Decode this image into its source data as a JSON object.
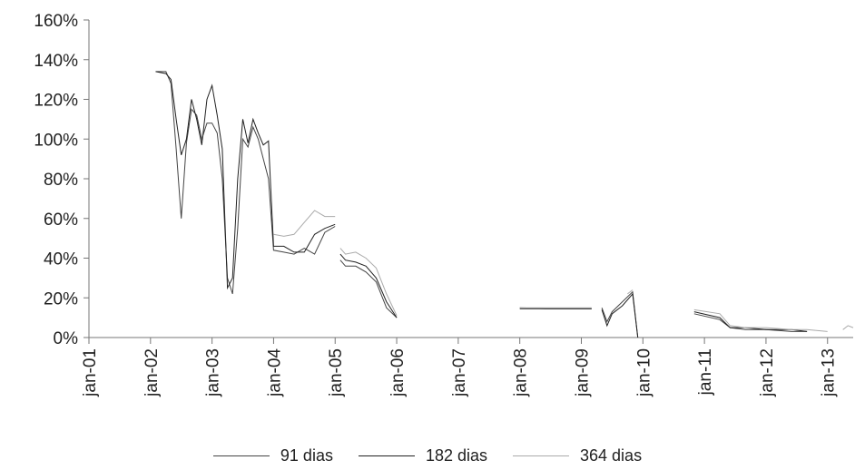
{
  "chart_data": {
    "type": "line",
    "y_ticks": [
      "0%",
      "20%",
      "40%",
      "60%",
      "80%",
      "100%",
      "120%",
      "140%",
      "160%"
    ],
    "ylim": [
      0,
      160
    ],
    "x_ticks": [
      "jan-01",
      "jan-02",
      "jan-03",
      "jan-04",
      "jan-05",
      "jan-06",
      "jan-07",
      "jan-08",
      "jan-09",
      "jan-10",
      "jan-11",
      "jan-12",
      "jan-13"
    ],
    "xlim": [
      "2001-01",
      "2013-06"
    ],
    "grid": false,
    "legend_position": "bottom",
    "series": [
      {
        "name": "91 dias",
        "color": "#444444",
        "segments": [
          [
            [
              "2002-02",
              134
            ],
            [
              "2002-04",
              134
            ],
            [
              "2002-05",
              128
            ],
            [
              "2002-06",
              95
            ],
            [
              "2002-07",
              60
            ],
            [
              "2002-08",
              98
            ],
            [
              "2002-09",
              115
            ],
            [
              "2002-10",
              112
            ],
            [
              "2002-11",
              100
            ],
            [
              "2002-12",
              108
            ],
            [
              "2003-01",
              108
            ],
            [
              "2003-02",
              103
            ],
            [
              "2003-03",
              80
            ],
            [
              "2003-04",
              30
            ],
            [
              "2003-05",
              22
            ],
            [
              "2003-06",
              55
            ],
            [
              "2003-07",
              100
            ],
            [
              "2003-08",
              96
            ],
            [
              "2003-09",
              106
            ],
            [
              "2003-10",
              100
            ],
            [
              "2003-11",
              90
            ],
            [
              "2003-12",
              80
            ],
            [
              "2004-01",
              44
            ],
            [
              "2004-03",
              43
            ],
            [
              "2004-05",
              42
            ],
            [
              "2004-07",
              45
            ],
            [
              "2004-09",
              42
            ],
            [
              "2004-11",
              53
            ],
            [
              "2005-01",
              56
            ]
          ],
          [
            [
              "2005-02",
              39
            ],
            [
              "2005-03",
              36
            ],
            [
              "2005-05",
              36
            ],
            [
              "2005-07",
              33
            ],
            [
              "2005-09",
              28
            ],
            [
              "2005-11",
              15
            ],
            [
              "2006-01",
              10
            ]
          ],
          [
            [
              "2008-01",
              15
            ],
            [
              "2008-06",
              14.5
            ],
            [
              "2009-03",
              14.5
            ]
          ],
          [
            [
              "2009-05",
              15
            ],
            [
              "2009-06",
              8
            ],
            [
              "2009-07",
              13
            ],
            [
              "2009-09",
              18
            ],
            [
              "2009-11",
              23
            ],
            [
              "2009-12",
              0
            ]
          ],
          [
            [
              "2010-11",
              12
            ],
            [
              "2011-04",
              9
            ],
            [
              "2011-06",
              5
            ],
            [
              "2011-09",
              4
            ],
            [
              "2012-01",
              4
            ],
            [
              "2012-06",
              3
            ],
            [
              "2012-09",
              3
            ]
          ]
        ]
      },
      {
        "name": "182 dias",
        "color": "#222222",
        "segments": [
          [
            [
              "2002-02",
              134
            ],
            [
              "2002-04",
              133
            ],
            [
              "2002-05",
              130
            ],
            [
              "2002-06",
              110
            ],
            [
              "2002-07",
              92
            ],
            [
              "2002-08",
              100
            ],
            [
              "2002-09",
              120
            ],
            [
              "2002-10",
              110
            ],
            [
              "2002-11",
              97
            ],
            [
              "2002-12",
              120
            ],
            [
              "2003-01",
              127
            ],
            [
              "2003-02",
              112
            ],
            [
              "2003-03",
              95
            ],
            [
              "2003-04",
              25
            ],
            [
              "2003-05",
              30
            ],
            [
              "2003-06",
              80
            ],
            [
              "2003-07",
              110
            ],
            [
              "2003-08",
              98
            ],
            [
              "2003-09",
              110
            ],
            [
              "2003-10",
              103
            ],
            [
              "2003-11",
              97
            ],
            [
              "2003-12",
              99
            ],
            [
              "2004-01",
              46
            ],
            [
              "2004-03",
              46
            ],
            [
              "2004-05",
              43
            ],
            [
              "2004-07",
              43
            ],
            [
              "2004-09",
              52
            ],
            [
              "2004-11",
              55
            ],
            [
              "2005-01",
              57
            ]
          ],
          [
            [
              "2005-02",
              42
            ],
            [
              "2005-03",
              39
            ],
            [
              "2005-05",
              38
            ],
            [
              "2005-07",
              36
            ],
            [
              "2005-09",
              30
            ],
            [
              "2005-11",
              18
            ],
            [
              "2006-01",
              10
            ]
          ],
          [
            [
              "2008-01",
              14.5
            ],
            [
              "2008-06",
              14.5
            ],
            [
              "2009-03",
              14.5
            ]
          ],
          [
            [
              "2009-05",
              14
            ],
            [
              "2009-06",
              6
            ],
            [
              "2009-07",
              12
            ],
            [
              "2009-09",
              16
            ],
            [
              "2009-11",
              22
            ],
            [
              "2009-12",
              0
            ]
          ],
          [
            [
              "2010-11",
              13
            ],
            [
              "2011-04",
              10
            ],
            [
              "2011-06",
              5
            ],
            [
              "2011-09",
              5
            ],
            [
              "2012-01",
              4
            ],
            [
              "2012-06",
              4
            ],
            [
              "2012-09",
              3
            ]
          ]
        ]
      },
      {
        "name": "364 dias",
        "color": "#aaaaaa",
        "segments": [
          [
            [
              "2004-01",
              52
            ],
            [
              "2004-03",
              51
            ],
            [
              "2004-05",
              52
            ],
            [
              "2004-07",
              58
            ],
            [
              "2004-09",
              64
            ],
            [
              "2004-11",
              61
            ],
            [
              "2005-01",
              61
            ]
          ],
          [
            [
              "2005-02",
              45
            ],
            [
              "2005-03",
              42
            ],
            [
              "2005-05",
              43
            ],
            [
              "2005-07",
              40
            ],
            [
              "2005-09",
              35
            ],
            [
              "2005-11",
              22
            ],
            [
              "2006-01",
              11
            ]
          ],
          [
            [
              "2008-01",
              15
            ],
            [
              "2008-06",
              15
            ],
            [
              "2009-03",
              15
            ]
          ],
          [
            [
              "2009-10",
              22
            ],
            [
              "2009-11",
              24
            ]
          ],
          [
            [
              "2010-11",
              14
            ],
            [
              "2011-04",
              12
            ],
            [
              "2011-06",
              6
            ],
            [
              "2011-09",
              5
            ],
            [
              "2012-01",
              5
            ],
            [
              "2012-06",
              4
            ],
            [
              "2012-09",
              4
            ],
            [
              "2013-01",
              3
            ]
          ],
          [
            [
              "2013-04",
              4
            ],
            [
              "2013-05",
              6
            ],
            [
              "2013-06",
              5
            ]
          ]
        ]
      }
    ]
  }
}
